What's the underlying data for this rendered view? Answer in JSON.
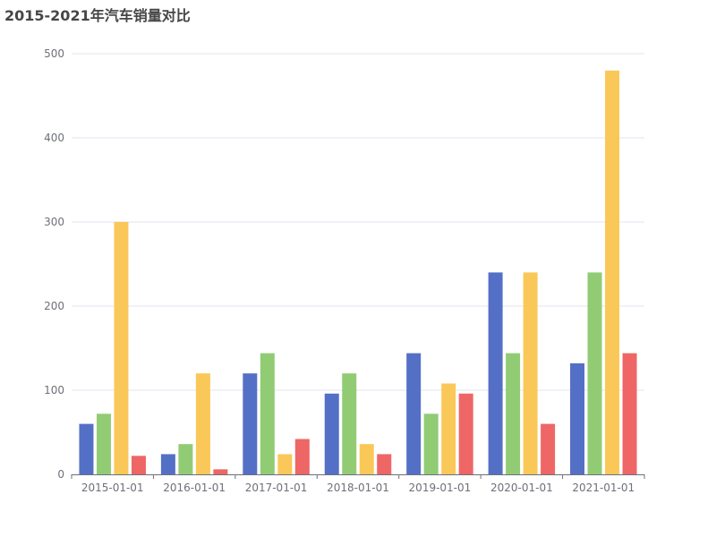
{
  "chart_data": {
    "type": "bar",
    "title": "2015-2021年汽车销量对比",
    "categories": [
      "2015-01-01",
      "2016-01-01",
      "2017-01-01",
      "2018-01-01",
      "2019-01-01",
      "2020-01-01",
      "2021-01-01"
    ],
    "series": [
      {
        "values": [
          60,
          24,
          120,
          96,
          144,
          240,
          132
        ],
        "color": "#5470c6"
      },
      {
        "values": [
          72,
          36,
          144,
          120,
          72,
          144,
          240
        ],
        "color": "#91cc75"
      },
      {
        "values": [
          300,
          120,
          24,
          36,
          108,
          240,
          480
        ],
        "color": "#fac858"
      },
      {
        "values": [
          22,
          6,
          42,
          24,
          96,
          60,
          144
        ],
        "color": "#ee6666"
      }
    ],
    "ylim": [
      0,
      500
    ],
    "yticks": [
      0,
      100,
      200,
      300,
      400,
      500
    ],
    "grid": true,
    "legend": "none",
    "xlabel": "",
    "ylabel": ""
  }
}
